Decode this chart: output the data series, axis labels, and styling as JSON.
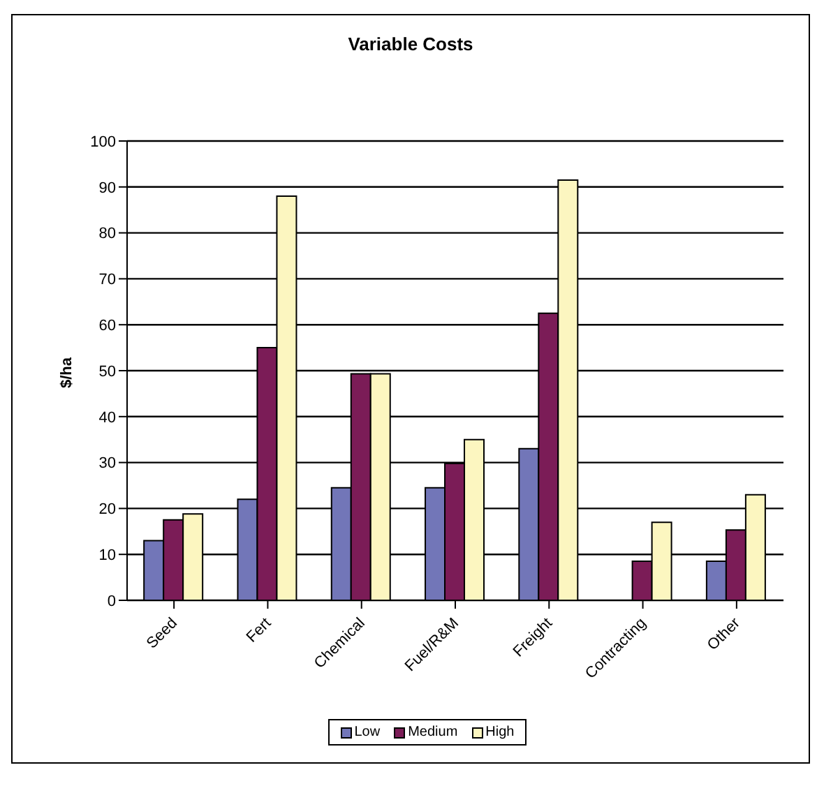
{
  "chart_data": {
    "type": "bar",
    "title": "Variable Costs",
    "ylabel": "$/ha",
    "categories": [
      "Seed",
      "Fert",
      "Chemical",
      "Fuel/R&M",
      "Freight",
      "Contracting",
      "Other"
    ],
    "series": [
      {
        "name": "Low",
        "color": "#7276b8",
        "values": [
          13,
          22,
          24.5,
          24.5,
          33,
          null,
          8.5
        ]
      },
      {
        "name": "Medium",
        "color": "#7b1c57",
        "values": [
          17.5,
          55,
          49.3,
          29.8,
          62.5,
          8.5,
          15.3
        ]
      },
      {
        "name": "High",
        "color": "#fcf6c0",
        "values": [
          18.8,
          88,
          49.3,
          35,
          91.5,
          17,
          23
        ]
      }
    ],
    "ylim": [
      0,
      100
    ],
    "yticks": [
      0,
      10,
      20,
      30,
      40,
      50,
      60,
      70,
      80,
      90,
      100
    ],
    "grid": "y",
    "legend": "bottom"
  }
}
